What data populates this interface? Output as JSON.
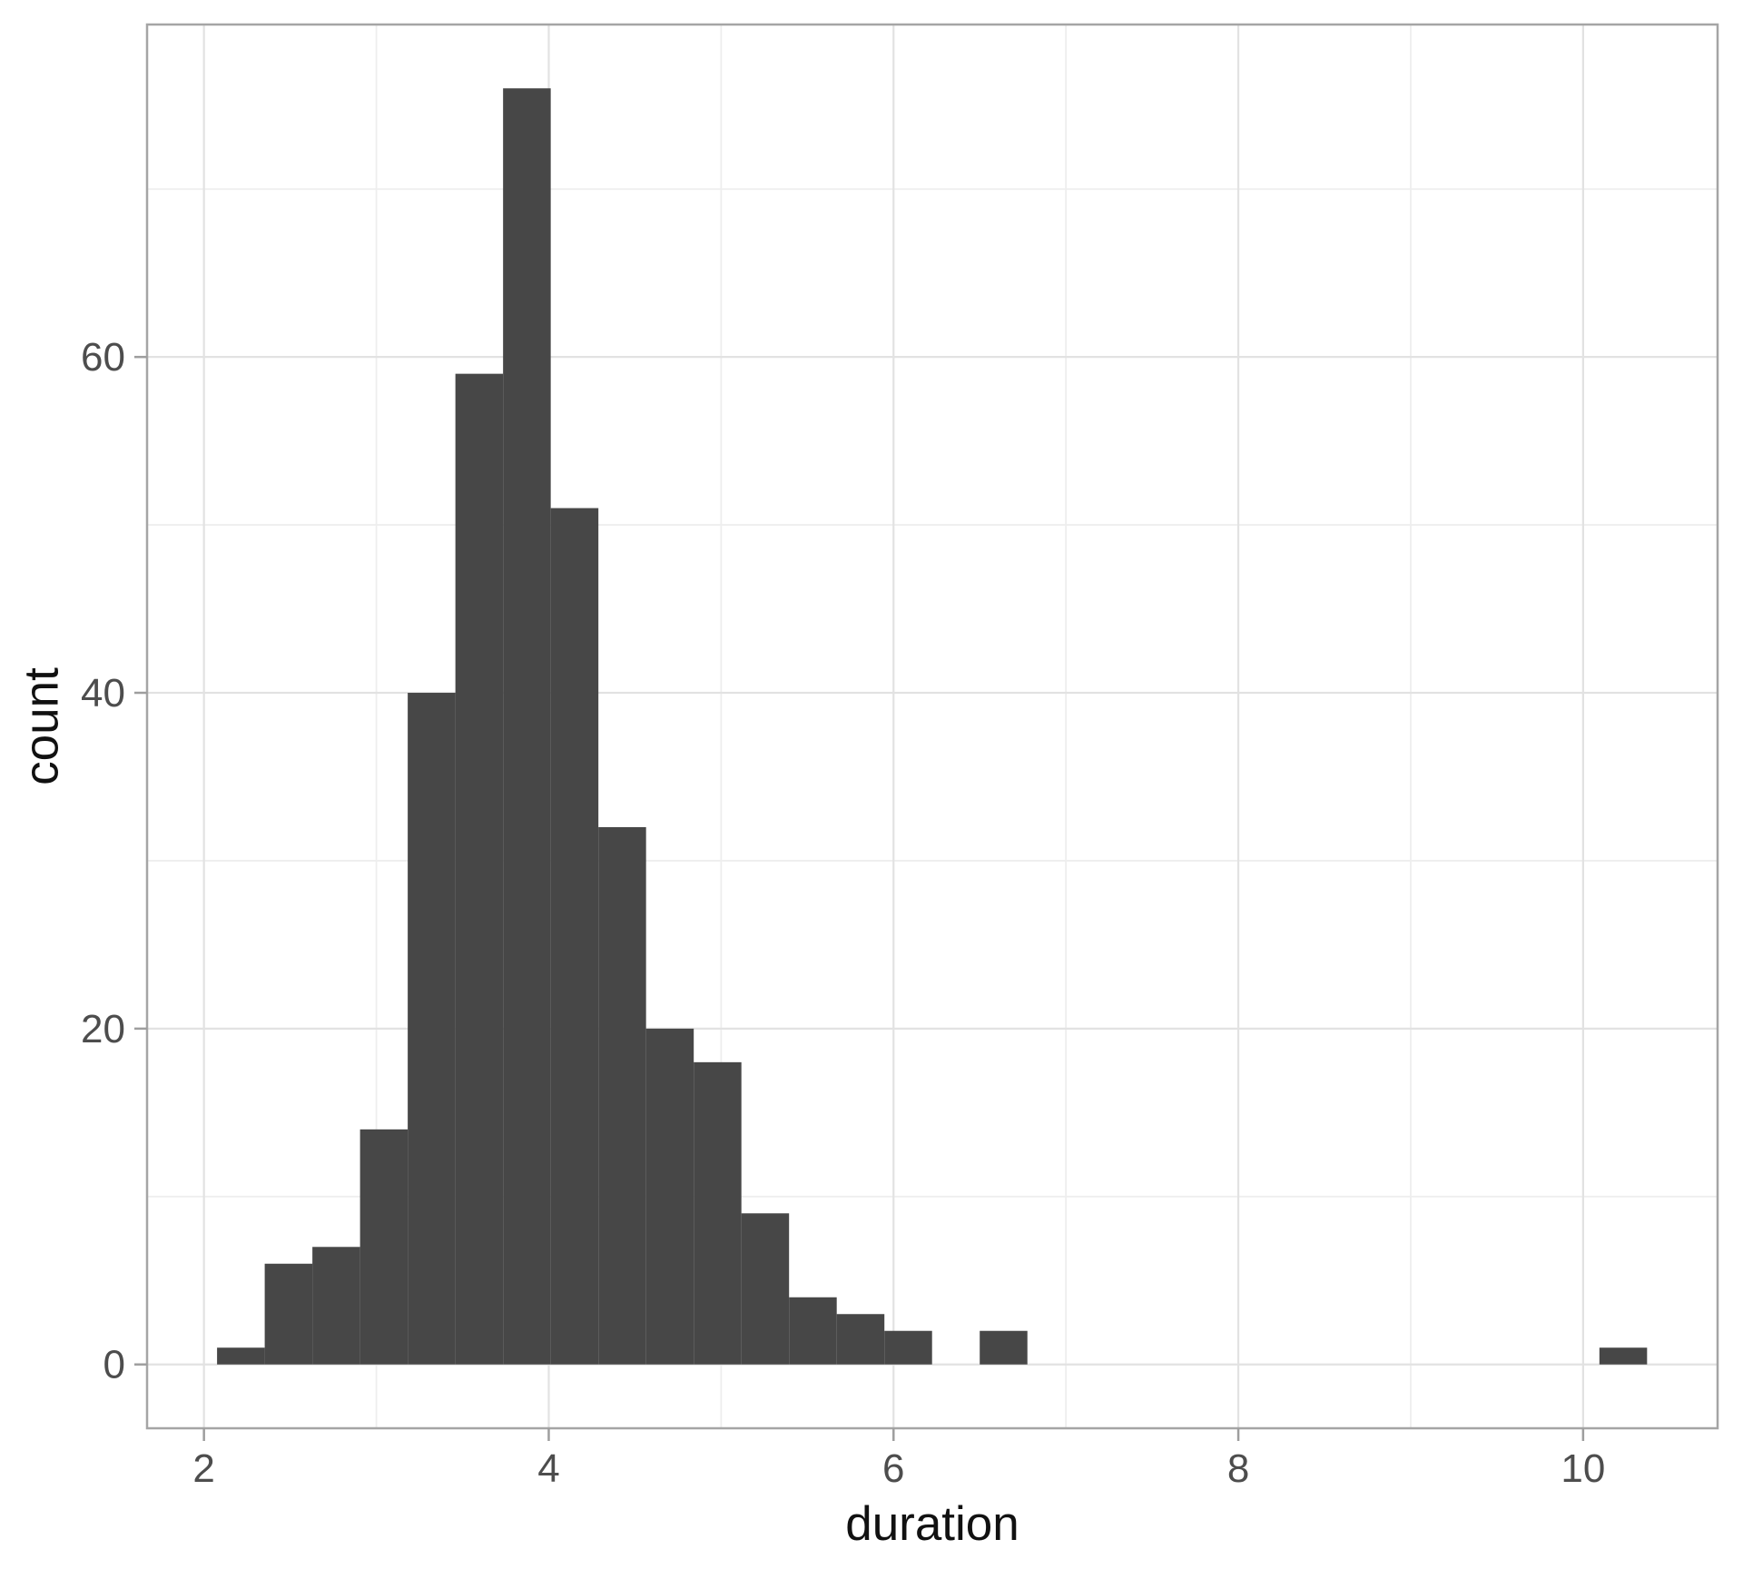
{
  "figure": {
    "background": "#ffffff"
  },
  "chart_data": {
    "type": "bar",
    "subtype": "histogram",
    "title": "",
    "xlabel": "duration",
    "ylabel": "count",
    "bin_start": 2.076,
    "bin_width": 0.2765,
    "counts": [
      1,
      6,
      7,
      14,
      40,
      59,
      76,
      51,
      32,
      20,
      18,
      9,
      4,
      3,
      2,
      0,
      2,
      0,
      0,
      0,
      0,
      0,
      0,
      0,
      0,
      0,
      0,
      0,
      0,
      1
    ],
    "x_major_ticks": [
      2,
      4,
      6,
      8,
      10
    ],
    "x_minor_gridlines": [
      3,
      5,
      7,
      9
    ],
    "y_major_ticks": [
      0,
      20,
      40,
      60
    ],
    "y_minor_gridlines": [
      10,
      30,
      50,
      70
    ],
    "xlim": [
      1.67,
      10.78
    ],
    "ylim": [
      -3.8,
      79.8
    ],
    "grid": true,
    "legend_position": "none",
    "colors": {
      "bar_fill": "#474747",
      "grid_major": "#e2e2e2",
      "grid_minor": "#eeeeee",
      "panel_border": "#a5a5a5",
      "tick_mark": "#9e9e9e",
      "tick_label": "#4d4d4d",
      "axis_title": "#111111",
      "panel_background": "#ffffff"
    }
  }
}
